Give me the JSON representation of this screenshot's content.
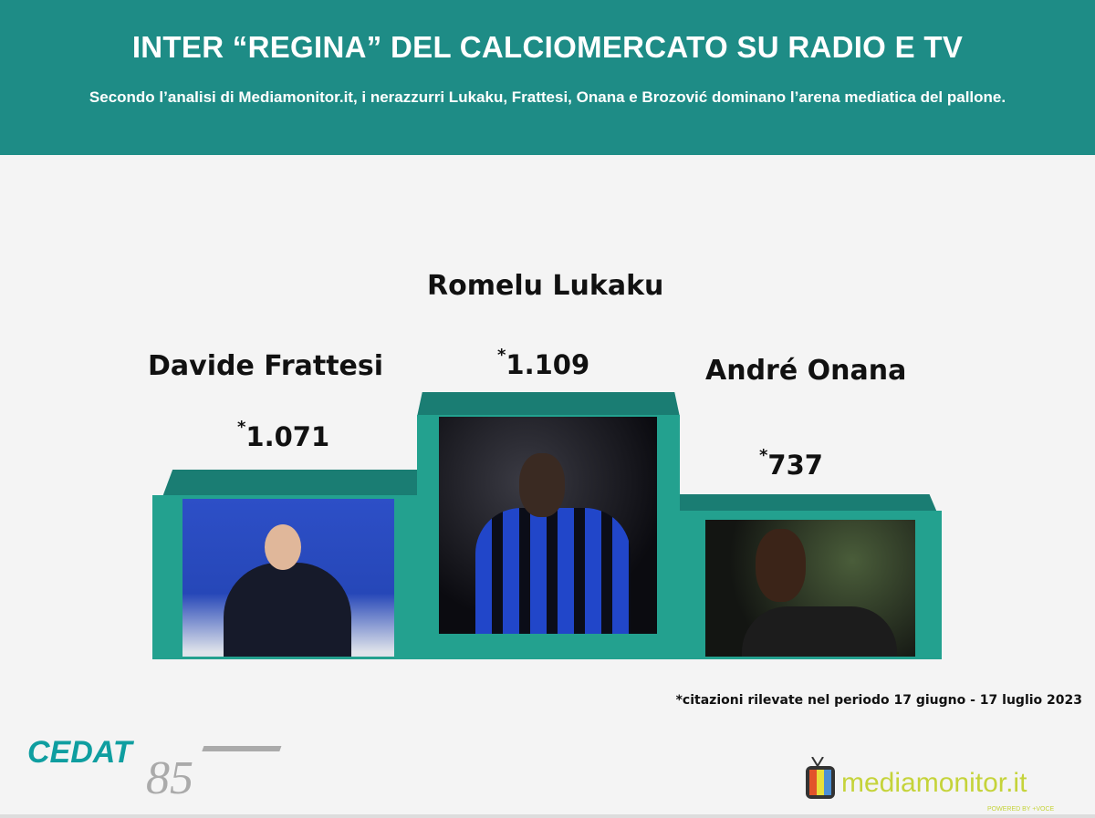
{
  "header": {
    "title": "INTER “REGINA” DEL CALCIOMERCATO SU RADIO E TV",
    "subtitle": "Secondo l’analisi di Mediamonitor.it, i nerazzurri Lukaku, Frattesi, Onana e Brozović dominano l’arena mediatica del pallone."
  },
  "podium": [
    {
      "rank": 2,
      "name": "Davide Frattesi",
      "asterisk": "*",
      "value": "1.071"
    },
    {
      "rank": 1,
      "name": "Romelu Lukaku",
      "asterisk": "*",
      "value": "1.109"
    },
    {
      "rank": 3,
      "name": "André Onana",
      "asterisk": "*",
      "value": "737"
    }
  ],
  "note": "*citazioni rilevate nel periodo 17 giugno - 17 luglio 2023",
  "logos": {
    "cedat": "CEDAT 85",
    "mediamonitor": "mediamonitor.it",
    "mediamonitor_tag": "POWERED BY +VOCE"
  },
  "colors": {
    "header": "#1e8c86",
    "podium_front": "#23a18f",
    "podium_top": "#1a7d73",
    "background": "#f4f4f4"
  }
}
